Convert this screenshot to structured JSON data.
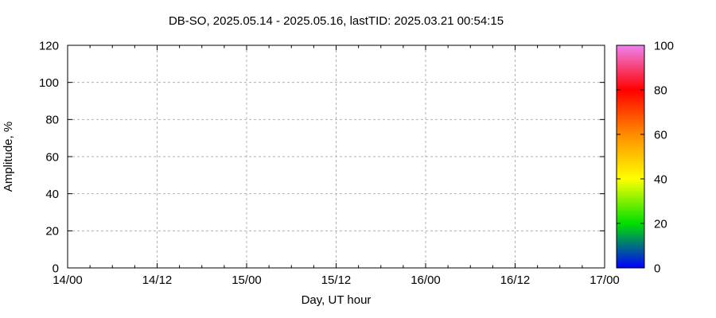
{
  "chart_data": {
    "type": "heatmap",
    "title": "DB-SO, 2025.05.14 - 2025.05.16, lastTID: 2025.03.21 00:54:15",
    "xlabel": "Day, UT hour",
    "ylabel": "Amplitude, %",
    "x_tick_labels": [
      "14/00",
      "14/12",
      "15/00",
      "15/12",
      "16/00",
      "16/12",
      "17/00"
    ],
    "x_hours_span": 72,
    "x_major_step_hours": 12,
    "x_minor_step_hours": 3,
    "y_ticks": [
      0,
      20,
      40,
      60,
      80,
      100,
      120
    ],
    "ylim": [
      0,
      120
    ],
    "grid": true,
    "legend_position": "colorbar-right",
    "values": [],
    "colorbar": {
      "ticks": [
        0,
        20,
        40,
        60,
        80,
        100
      ],
      "range": [
        0,
        100
      ],
      "gradient": [
        {
          "value": 0,
          "color": "#0000ff"
        },
        {
          "value": 20,
          "color": "#00e000"
        },
        {
          "value": 40,
          "color": "#ffff00"
        },
        {
          "value": 60,
          "color": "#ff8c00"
        },
        {
          "value": 80,
          "color": "#ff0000"
        },
        {
          "value": 100,
          "color": "#ee82ee"
        }
      ]
    },
    "colors": {
      "background": "#ffffff",
      "axis": "#000000",
      "grid": "#b0b0b0",
      "text": "#000000"
    }
  }
}
